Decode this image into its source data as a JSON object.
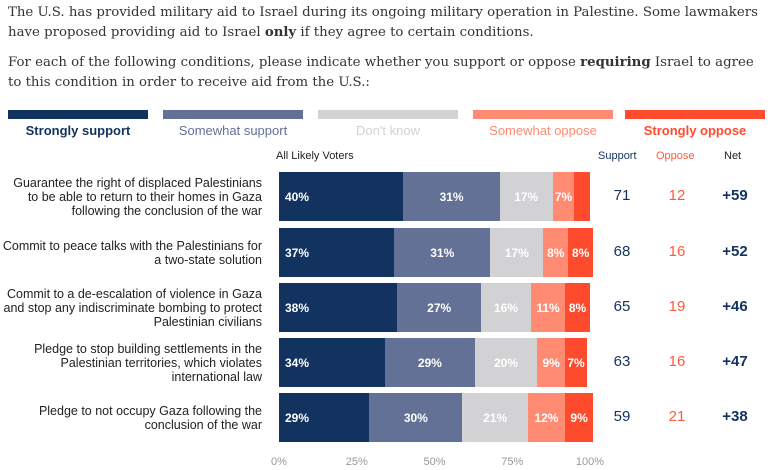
{
  "intro": {
    "p1_a": "The U.S. has provided military aid to Israel during its ongoing military operation in Palestine. Some lawmakers have proposed providing aid to Israel ",
    "p1_bold": "only",
    "p1_b": " if they agree to certain conditions.",
    "p2_a": "For each of the following conditions, please indicate whether you support or oppose ",
    "p2_bold": "requiring",
    "p2_b": " Israel to agree to this condition in order to receive aid from the U.S.:"
  },
  "chart_data": {
    "type": "bar",
    "orientation": "horizontal-stacked",
    "subtitle": "All Likely Voters",
    "series": [
      {
        "name": "Strongly support",
        "color": "#12325f",
        "values": [
          40,
          37,
          38,
          34,
          29
        ]
      },
      {
        "name": "Somewhat support",
        "color": "#647196",
        "values": [
          31,
          31,
          27,
          29,
          30
        ]
      },
      {
        "name": "Don't know",
        "color": "#d2d2d4",
        "values": [
          17,
          17,
          16,
          20,
          21
        ]
      },
      {
        "name": "Somewhat oppose",
        "color": "#ff8b72",
        "values": [
          7,
          8,
          11,
          9,
          12
        ]
      },
      {
        "name": "Strongly oppose",
        "color": "#ff4b2d",
        "values": [
          5,
          8,
          8,
          7,
          9
        ]
      }
    ],
    "categories": [
      "Guarantee the right of displaced Palestinians to be able to return to their homes in Gaza following the conclusion of the war",
      "Commit to peace talks with the Palestinians for a two-state solution",
      "Commit to a de-escalation of violence in Gaza and stop any indiscriminate bombing to protect Palestinian civilians",
      "Pledge to stop building settlements in the Palestinian territories, which violates international law",
      "Pledge to not occupy Gaza following the conclusion of the war"
    ],
    "labels_shown": [
      [
        "40%",
        "31%",
        "17%",
        "7%",
        ""
      ],
      [
        "37%",
        "31%",
        "17%",
        "8%",
        "8%"
      ],
      [
        "38%",
        "27%",
        "16%",
        "11%",
        "8%"
      ],
      [
        "34%",
        "29%",
        "20%",
        "9%",
        "7%"
      ],
      [
        "29%",
        "30%",
        "21%",
        "12%",
        "9%"
      ]
    ],
    "xticks": [
      "0%",
      "25%",
      "50%",
      "75%",
      "100%"
    ],
    "xlim": [
      0,
      100
    ],
    "summary_headers": [
      "Support",
      "Oppose",
      "Net"
    ],
    "support": [
      "71",
      "68",
      "65",
      "63",
      "59"
    ],
    "oppose": [
      "12",
      "16",
      "19",
      "16",
      "21"
    ],
    "net": [
      "+59",
      "+52",
      "+46",
      "+47",
      "+38"
    ]
  }
}
